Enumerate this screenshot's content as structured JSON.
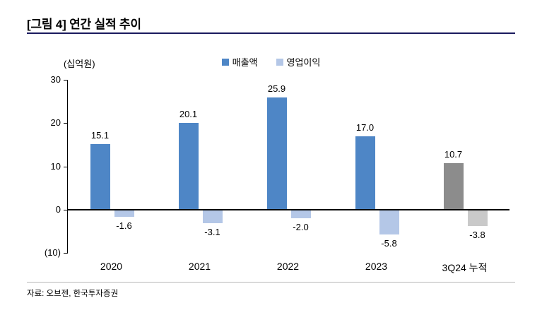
{
  "header": {
    "title": "[그림 4] 연간 실적 추이"
  },
  "footer": {
    "source": "자료: 오브젠, 한국투자증권"
  },
  "chart_data": {
    "type": "bar",
    "title": "[그림 4] 연간 실적 추이",
    "unit_label": "(십억원)",
    "categories": [
      "2020",
      "2021",
      "2022",
      "2023",
      "3Q24 누적"
    ],
    "series": [
      {
        "key": "revenue",
        "name": "매출액",
        "values": [
          15.1,
          20.1,
          25.9,
          17.0,
          10.7
        ],
        "labels": [
          "15.1",
          "20.1",
          "25.9",
          "17.0",
          "10.7"
        ],
        "color": "#4E86C6",
        "bar_colors": [
          "#4E86C6",
          "#4E86C6",
          "#4E86C6",
          "#4E86C6",
          "#8C8C8C"
        ]
      },
      {
        "key": "operating-profit",
        "name": "영업이익",
        "values": [
          -1.6,
          -3.1,
          -2.0,
          -5.8,
          -3.8
        ],
        "labels": [
          "-1.6",
          "-3.1",
          "-2.0",
          "-5.8",
          "-3.8"
        ],
        "color": "#B4C7E7",
        "bar_colors": [
          "#B4C7E7",
          "#B4C7E7",
          "#B4C7E7",
          "#B4C7E7",
          "#C9C9C9"
        ]
      }
    ],
    "ylim": [
      -10,
      30
    ],
    "yticks": [
      {
        "label": "30",
        "value": 30
      },
      {
        "label": "20",
        "value": 20
      },
      {
        "label": "10",
        "value": 10
      },
      {
        "label": "0",
        "value": 0
      },
      {
        "label": "(10)",
        "value": -10
      }
    ],
    "grid": false,
    "legend_position": "top",
    "xlabel": "",
    "ylabel": "(십억원)"
  },
  "colors": {
    "title_rule": "#1A1A5E",
    "axis": "#000000",
    "footer_rule": "#B7B7B7"
  }
}
